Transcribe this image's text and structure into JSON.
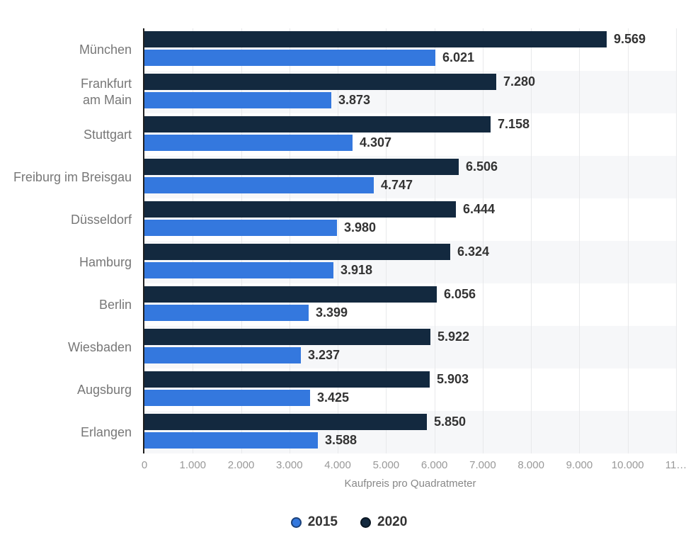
{
  "chart_data": {
    "type": "bar",
    "orientation": "horizontal",
    "title": "",
    "xlabel": "Kaufpreis pro Quadratmeter",
    "xlim": [
      0,
      11000
    ],
    "x_tick_values": [
      0,
      1000,
      2000,
      3000,
      4000,
      5000,
      6000,
      7000,
      8000,
      9000,
      10000,
      11000
    ],
    "x_tick_labels": [
      "0",
      "1.000",
      "2.000",
      "3.000",
      "4.000",
      "5.000",
      "6.000",
      "7.000",
      "8.000",
      "9.000",
      "10.000",
      "11…"
    ],
    "grid": "vertical-on",
    "legend_position": "bottom-center",
    "categories": [
      "München",
      "Frankfurt\nam Main",
      "Stuttgart",
      "Freiburg im Breisgau",
      "Düsseldorf",
      "Hamburg",
      "Berlin",
      "Wiesbaden",
      "Augsburg",
      "Erlangen"
    ],
    "series": [
      {
        "name": "2015",
        "color": "#3478de",
        "values": [
          6021,
          3873,
          4307,
          4747,
          3980,
          3918,
          3399,
          3237,
          3425,
          3588
        ]
      },
      {
        "name": "2020",
        "color": "#13293f",
        "values": [
          9569,
          7280,
          7158,
          6506,
          6444,
          6324,
          6056,
          5922,
          5903,
          5850
        ]
      }
    ],
    "series_render_order_top_first": [
      "2020",
      "2015"
    ],
    "value_labels": {
      "2020": [
        "9.569",
        "7.280",
        "7.158",
        "6.506",
        "6.444",
        "6.324",
        "6.056",
        "5.922",
        "5.903",
        "5.850"
      ],
      "2015": [
        "6.021",
        "3.873",
        "4.307",
        "4.747",
        "3.980",
        "3.918",
        "3.399",
        "3.237",
        "3.425",
        "3.588"
      ]
    }
  },
  "colors": {
    "series_2015": "#3478de",
    "series_2020": "#13293f",
    "row_stripe": "#f6f7f9",
    "gridline": "#e8e9eb",
    "axis_line": "#1f1f1f",
    "category_label": "#777777",
    "tick_label": "#999999",
    "axis_title": "#888888",
    "value_label": "#333333",
    "legend_label": "#333333"
  }
}
